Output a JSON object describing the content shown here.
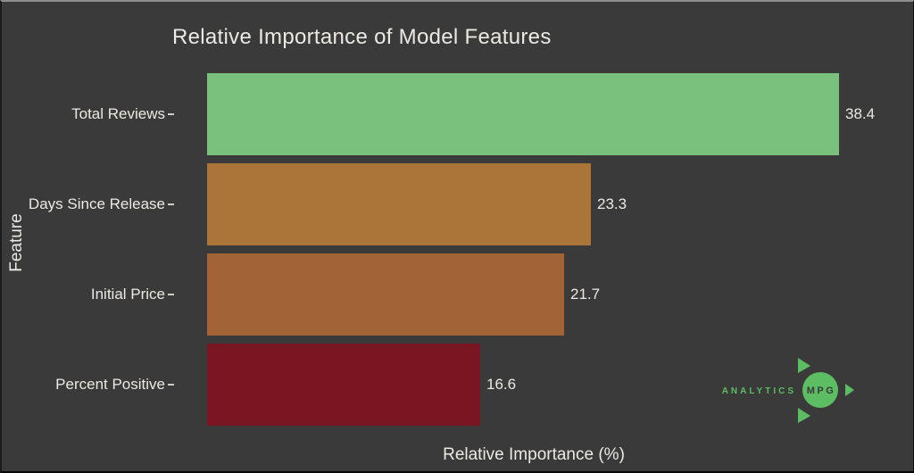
{
  "chart_data": {
    "type": "bar",
    "orientation": "horizontal",
    "title": "Relative Importance of Model Features",
    "xlabel": "Relative Importance (%)",
    "ylabel": "Feature",
    "categories": [
      "Total Reviews",
      "Days Since Release",
      "Initial Price",
      "Percent Positive"
    ],
    "values": [
      38.4,
      23.3,
      21.7,
      16.6
    ],
    "bars": [
      {
        "label": "Total Reviews",
        "value": 38.4,
        "value_label": "38.4",
        "color": "#7ac17e"
      },
      {
        "label": "Days Since Release",
        "value": 23.3,
        "value_label": "23.3",
        "color": "#ab7539"
      },
      {
        "label": "Initial Price",
        "value": 21.7,
        "value_label": "21.7",
        "color": "#a26336"
      },
      {
        "label": "Percent Positive",
        "value": 16.6,
        "value_label": "16.6",
        "color": "#7a1522"
      }
    ],
    "xlim": [
      0,
      43
    ],
    "grid": false,
    "legend": false,
    "background_color": "#3a3a3a",
    "text_color": "#ece9e3"
  },
  "logo": {
    "brand_left": "ANALYTICS",
    "brand_circle": "MPG",
    "accent_color": "#5cbd62"
  }
}
